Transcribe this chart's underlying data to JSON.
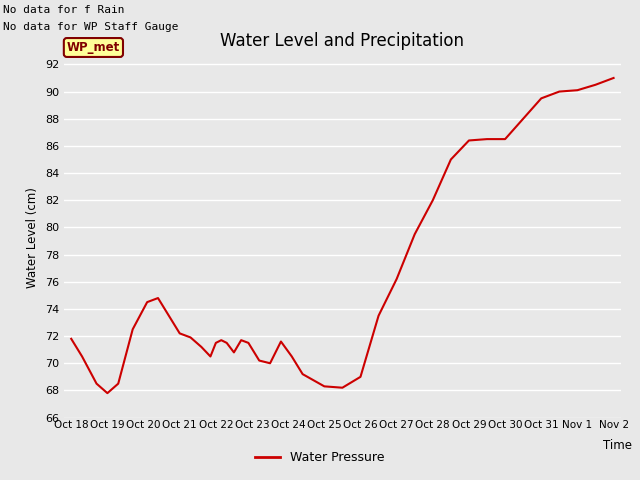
{
  "title": "Water Level and Precipitation",
  "ylabel": "Water Level (cm)",
  "xlabel": "Time",
  "line_color": "#cc0000",
  "line_width": 1.5,
  "background_color": "#e8e8e8",
  "plot_bg_color": "#e8e8e8",
  "grid_color": "#ffffff",
  "annotations": [
    "No data for f Rain",
    "No data for WP Staff Gauge"
  ],
  "legend_label": "Water Pressure",
  "legend_line_color": "#cc0000",
  "wp_met_box_color": "#ffff99",
  "wp_met_text_color": "#800000",
  "x_labels": [
    "Oct 18",
    "Oct 19",
    "Oct 20",
    "Oct 21",
    "Oct 22",
    "Oct 23",
    "Oct 24",
    "Oct 25",
    "Oct 26",
    "Oct 27",
    "Oct 28",
    "Oct 29",
    "Oct 30",
    "Oct 31",
    "Nov 1",
    "Nov 2"
  ],
  "x_data": [
    0,
    0.3,
    0.5,
    0.7,
    1.0,
    1.3,
    1.5,
    1.7,
    1.9,
    2.1,
    2.4,
    2.7,
    3.0,
    3.3,
    3.6,
    3.85,
    4.0,
    4.15,
    4.3,
    4.5,
    4.7,
    4.9,
    5.2,
    5.5,
    5.8,
    6.1,
    6.4,
    7.0,
    7.5,
    8.0,
    8.5,
    9.0,
    9.5,
    10.0,
    10.5,
    11.0,
    11.5,
    12.0,
    12.5,
    13.0,
    13.5,
    14.0,
    14.5,
    15.0
  ],
  "y_data": [
    71.8,
    70.5,
    69.5,
    68.5,
    67.8,
    68.5,
    70.5,
    72.5,
    73.5,
    74.5,
    74.8,
    73.5,
    72.2,
    71.9,
    71.2,
    70.5,
    71.5,
    71.7,
    71.5,
    70.8,
    71.7,
    71.5,
    70.2,
    70.0,
    71.6,
    70.5,
    69.2,
    68.3,
    68.2,
    69.0,
    73.5,
    76.2,
    79.5,
    82.0,
    85.0,
    86.4,
    86.5,
    86.5,
    88.0,
    89.5,
    90.0,
    90.1,
    90.5,
    91.0
  ]
}
